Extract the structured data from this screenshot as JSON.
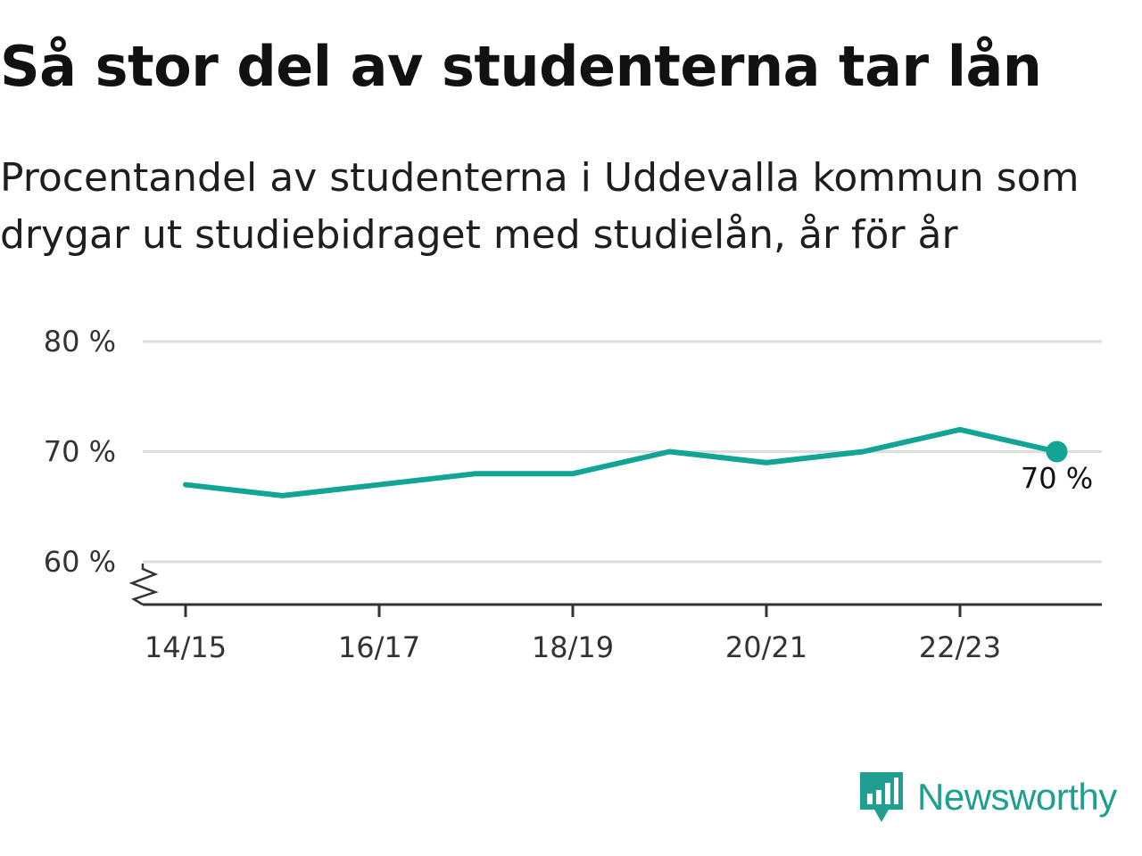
{
  "header": {
    "title": "Så stor del av studenterna tar lån",
    "subtitle": "Procentandel av studenterna i Uddevalla kommun som drygar ut studiebidraget med studielån, år för år"
  },
  "chart_data": {
    "type": "line",
    "x": [
      "14/15",
      "15/16",
      "16/17",
      "17/18",
      "18/19",
      "19/20",
      "20/21",
      "21/22",
      "22/23",
      "23/24"
    ],
    "x_tick_labels": [
      "14/15",
      "16/17",
      "18/19",
      "20/21",
      "22/23"
    ],
    "series": [
      {
        "values": [
          67,
          66,
          67,
          68,
          68,
          70,
          69,
          70,
          72,
          70
        ]
      }
    ],
    "ylim": [
      60,
      80
    ],
    "y_ticks": [
      60,
      70,
      80
    ],
    "y_tick_labels": [
      "60 %",
      "70 %",
      "80 %"
    ],
    "axis_break": true,
    "grid": true,
    "end_label": "70 %",
    "colors": {
      "line": "#12a596",
      "grid": "#dddddd",
      "axis": "#333333"
    }
  },
  "brand": {
    "name": "Newsworthy",
    "icon": "newsworthy-logo-icon",
    "color": "#1f9f8f"
  }
}
